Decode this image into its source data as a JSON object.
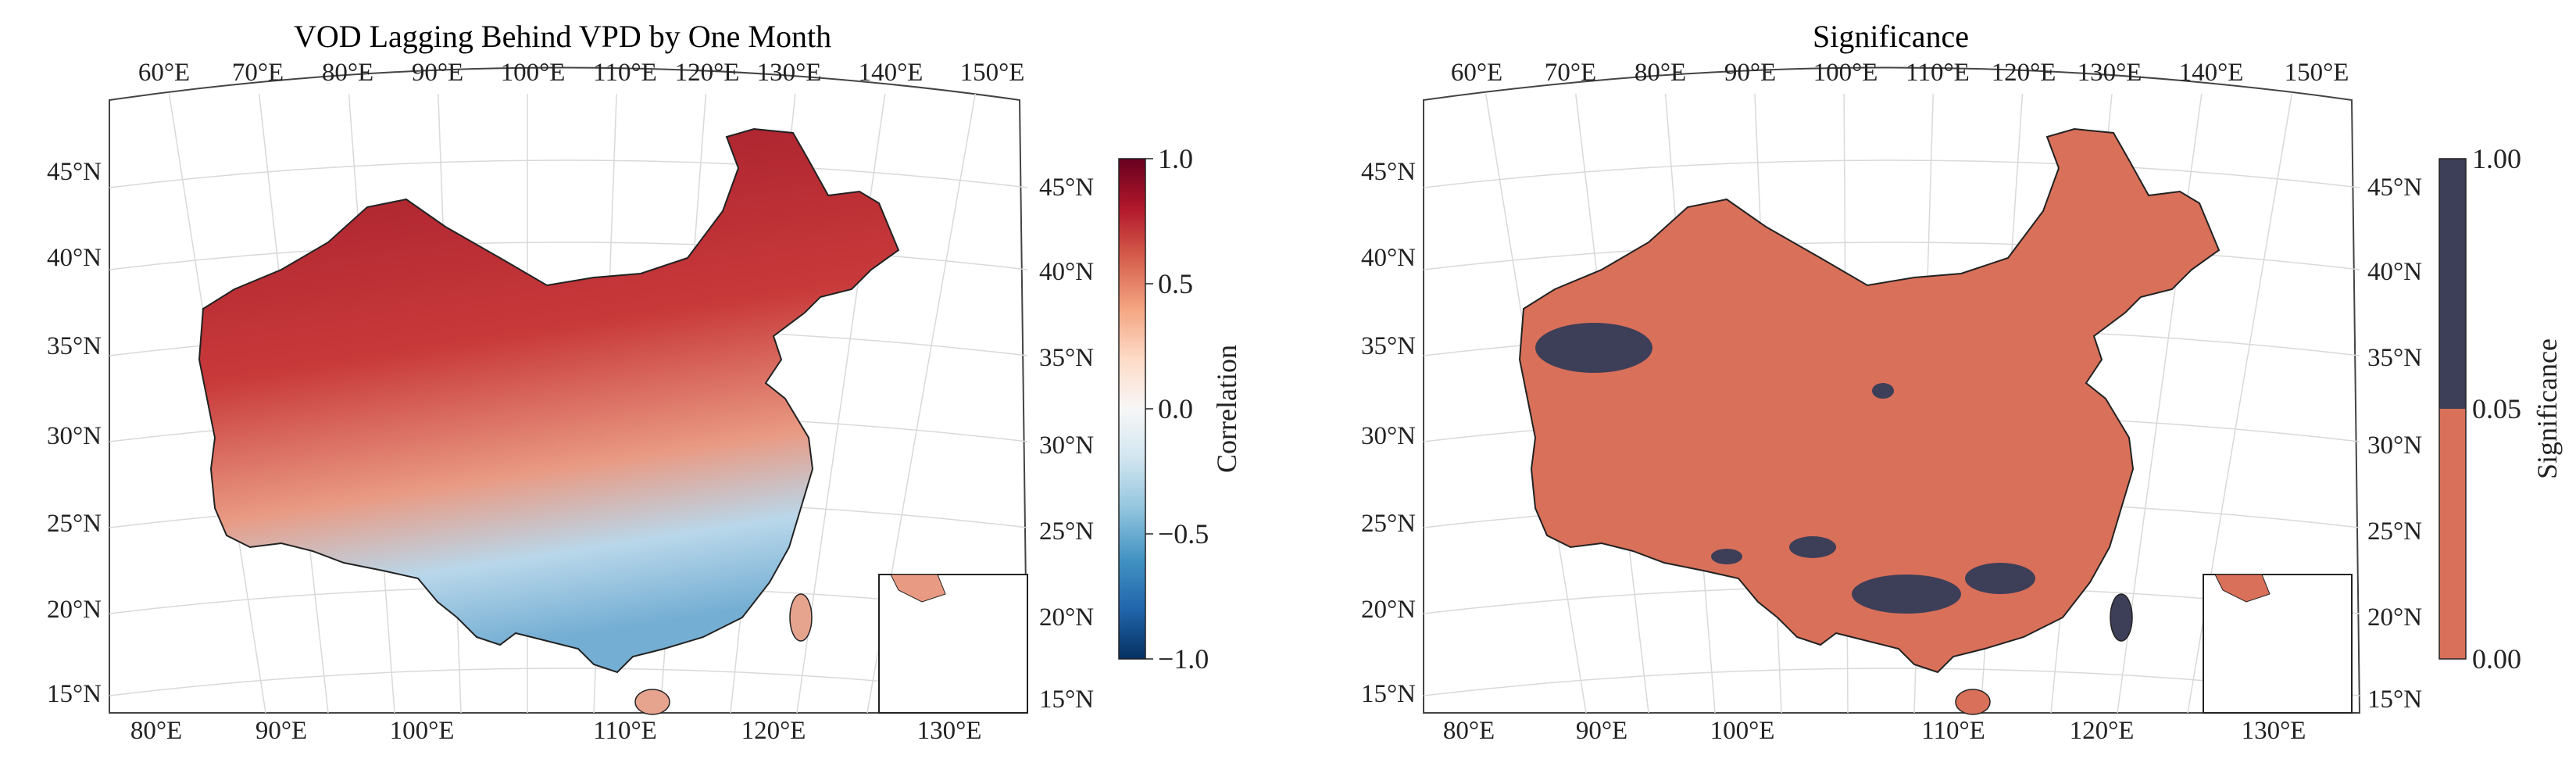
{
  "panels": [
    {
      "id": "correlation",
      "title": "VOD Lagging Behind VPD by One Month",
      "top_lon_labels": [
        "60°E",
        "70°E",
        "80°E",
        "90°E",
        "100°E",
        "110°E",
        "120°E",
        "130°E",
        "140°E",
        "150°E"
      ],
      "bottom_lon_labels": [
        "80°E",
        "90°E",
        "100°E",
        "110°E",
        "120°E",
        "130°E"
      ],
      "left_lat_labels": [
        "45°N",
        "40°N",
        "35°N",
        "30°N",
        "25°N",
        "20°N",
        "15°N"
      ],
      "right_lat_labels": [
        "45°N",
        "40°N",
        "35°N",
        "30°N",
        "25°N",
        "20°N",
        "15°N"
      ],
      "inset_lon_label": "130°E",
      "colorbar": {
        "label": "Correlation",
        "ticks": [
          "1.0",
          "0.5",
          "0.0",
          "−0.5",
          "−1.0"
        ],
        "tick_values": [
          1.0,
          0.5,
          0.0,
          -0.5,
          -1.0
        ],
        "range": [
          -1.0,
          1.0
        ],
        "colormap": [
          "#053061",
          "#2166ac",
          "#4393c3",
          "#92c5de",
          "#d1e5f0",
          "#f7f7f7",
          "#fddbc7",
          "#f4a582",
          "#d6604d",
          "#b2182b",
          "#67001f"
        ]
      },
      "map_fill": "#d84f47"
    },
    {
      "id": "significance",
      "title": "Significance",
      "top_lon_labels": [
        "60°E",
        "70°E",
        "80°E",
        "90°E",
        "100°E",
        "110°E",
        "120°E",
        "130°E",
        "140°E",
        "150°E"
      ],
      "bottom_lon_labels": [
        "80°E",
        "90°E",
        "100°E",
        "110°E",
        "120°E",
        "130°E"
      ],
      "left_lat_labels": [
        "45°N",
        "40°N",
        "35°N",
        "30°N",
        "25°N",
        "20°N",
        "15°N"
      ],
      "right_lat_labels": [
        "45°N",
        "40°N",
        "35°N",
        "30°N",
        "25°N",
        "20°N",
        "15°N"
      ],
      "inset_lon_label": "130°E",
      "colorbar": {
        "label": "Significance",
        "ticks": [
          "1.00",
          "0.05",
          "0.00"
        ],
        "categories": [
          {
            "range": [
              0.05,
              1.0
            ],
            "color": "#3d3e57"
          },
          {
            "range": [
              0.0,
              0.05
            ],
            "color": "#d9705a"
          }
        ]
      },
      "map_fill": "#d9705a"
    }
  ]
}
